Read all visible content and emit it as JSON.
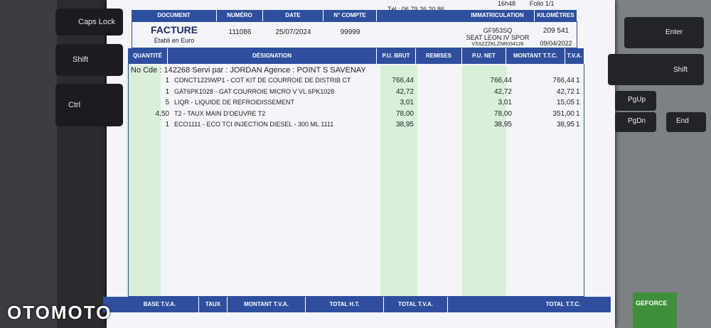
{
  "header": {
    "phone": "Tél : 06 79 26 20 86",
    "time": "16h48",
    "folio": "Folio 1/1"
  },
  "document_table": {
    "headers": [
      "DOCUMENT",
      "NUMÉRO",
      "DATE",
      "N° COMPTE",
      "IMMATRICULATION",
      "KILOMÈTRES"
    ],
    "document": "FACTURE",
    "document_note": "Etabli en Euro",
    "number": "111086",
    "date": "25/07/2024",
    "account": "99999",
    "registration": "GF953SQ",
    "model": "SEAT LEON IV SPOR",
    "vin": "VSSZZZKLZNR034126",
    "kilometres": "209 541",
    "registration_date": "09/04/2022"
  },
  "lines": {
    "headers": [
      "QUANTITÉ",
      "DÉSIGNATION",
      "P.U. BRUT",
      "REMISES",
      "P.U. NET",
      "MONTANT T.T.C.",
      "T.V.A."
    ],
    "order_info": "No Cde : 142268  Servi par : JORDAN  Agence : POINT S SAVENAY",
    "rows": [
      {
        "qty": "1",
        "designation": "CONCT1229WP1 - COT KIT DE COURROIE DE DISTRIB CT",
        "pu_brut": "766,44",
        "pu_net": "766,44",
        "amount": "766,44",
        "vat": "1"
      },
      {
        "qty": "1",
        "designation": "GAT6PK1028 - GAT COURROIE MICRO V VL 6PK1028",
        "pu_brut": "42,72",
        "pu_net": "42,72",
        "amount": "42,72",
        "vat": "1"
      },
      {
        "qty": "5",
        "designation": "LIQR - LIQUIDE DE REFROIDISSEMENT",
        "pu_brut": "3,01",
        "pu_net": "3,01",
        "amount": "15,05",
        "vat": "1"
      },
      {
        "qty": "4,50",
        "designation": "T2 - TAUX MAIN D'OEUVRE T2",
        "pu_brut": "78,00",
        "pu_net": "78,00",
        "amount": "351,00",
        "vat": "1"
      },
      {
        "qty": "1",
        "designation": "ECO1111 - ECO TCI INJECTION DIESEL - 300 ML 1111",
        "pu_brut": "38,95",
        "pu_net": "38,95",
        "amount": "38,95",
        "vat": "1"
      }
    ]
  },
  "footer": {
    "headers": [
      "BASE T.V.A.",
      "TAUX",
      "MONTANT T.V.A.",
      "TOTAL H.T.",
      "TOTAL T.V.A.",
      "TOTAL T.T.C."
    ]
  },
  "keyboard": {
    "caps_lock": "Caps Lock",
    "shift_left": "Shift",
    "ctrl": "Ctrl",
    "enter": "Enter",
    "shift_right": "Shift",
    "pgup": "PgUp",
    "pgdn": "PgDn",
    "end": "End",
    "sticker": "GEFORCE"
  },
  "watermark": "OTOMOTO"
}
